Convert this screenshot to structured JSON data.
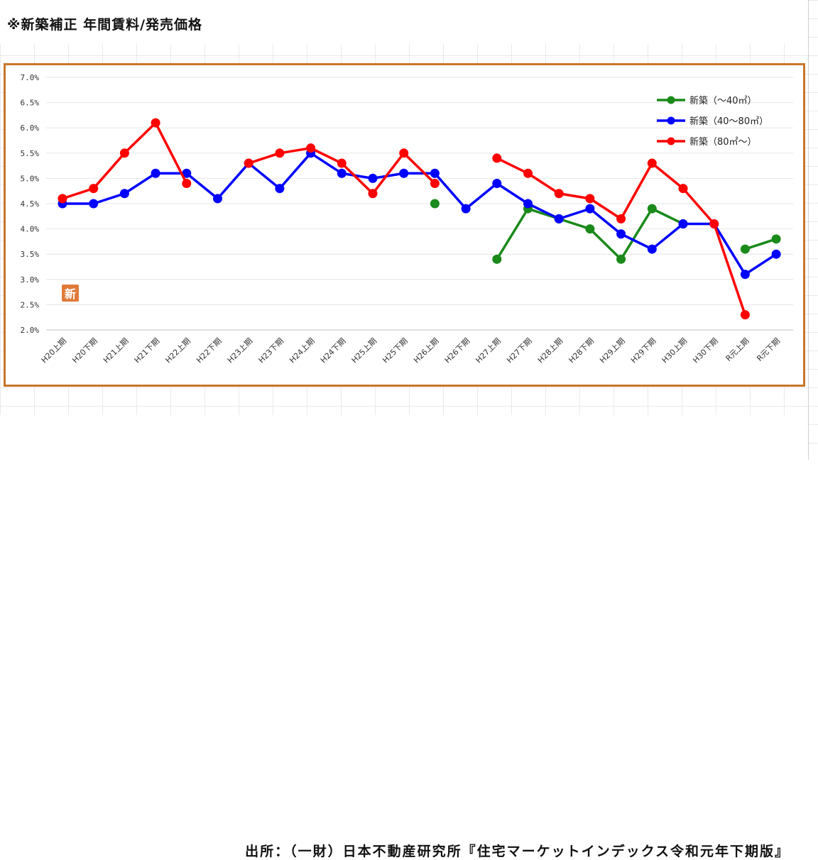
{
  "page": {
    "title": "※新築補正 年間賃料/発売価格",
    "source": "出所：（一財）日本不動産研究所『住宅マーケットインデックス令和元年下期版』",
    "stamp_text": "新"
  },
  "chart_data": {
    "type": "line",
    "categories": [
      "H20上期",
      "H20下期",
      "H21上期",
      "H21下期",
      "H22上期",
      "H22下期",
      "H23上期",
      "H23下期",
      "H24上期",
      "H24下期",
      "H25上期",
      "H25下期",
      "H26上期",
      "H26下期",
      "H27上期",
      "H27下期",
      "H28上期",
      "H28下期",
      "H29上期",
      "H29下期",
      "H30上期",
      "H30下期",
      "R元上期",
      "R元下期"
    ],
    "y_ticks": [
      "2.0%",
      "2.5%",
      "3.0%",
      "3.5%",
      "4.0%",
      "4.5%",
      "5.0%",
      "5.5%",
      "6.0%",
      "6.5%",
      "7.0%"
    ],
    "ylim": [
      2.0,
      7.0
    ],
    "grid": "horizontal",
    "legend_position": "top-right",
    "series": [
      {
        "name": "新築（～40㎡）",
        "color": "#1a8a1a",
        "values": [
          null,
          null,
          null,
          null,
          null,
          null,
          null,
          null,
          null,
          null,
          null,
          null,
          4.5,
          null,
          3.4,
          4.4,
          4.2,
          4.0,
          3.4,
          4.4,
          4.1,
          null,
          3.6,
          3.8
        ]
      },
      {
        "name": "新築（40～80㎡）",
        "color": "#0000ff",
        "values": [
          4.5,
          4.5,
          4.7,
          5.1,
          5.1,
          4.6,
          5.3,
          4.8,
          5.5,
          5.1,
          5.0,
          5.1,
          5.1,
          4.4,
          4.9,
          4.5,
          4.2,
          4.4,
          3.9,
          3.6,
          4.1,
          4.1,
          3.1,
          3.5
        ]
      },
      {
        "name": "新築（80㎡～）",
        "color": "#ff0000",
        "values": [
          4.6,
          4.8,
          5.5,
          6.1,
          4.9,
          null,
          5.3,
          5.5,
          5.6,
          5.3,
          4.7,
          5.5,
          4.9,
          null,
          5.4,
          5.1,
          4.7,
          4.6,
          4.2,
          5.3,
          4.8,
          4.1,
          2.3,
          null
        ]
      }
    ]
  }
}
